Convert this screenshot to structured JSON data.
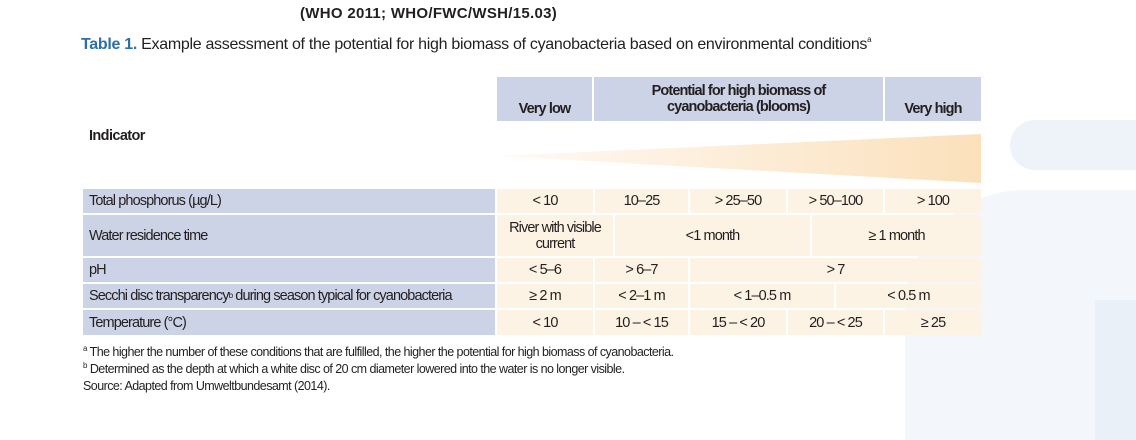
{
  "citation": "(WHO 2011; WHO/FWC/WSH/15.03)",
  "caption": {
    "label": "Table 1.",
    "text": " Example assessment of the potential for high biomass of cyanobacteria based on environmental conditions",
    "sup": "a"
  },
  "header": {
    "indicator": "Indicator",
    "very_low": "Very low",
    "potential": "Potential for high biomass of cyanobacteria (blooms)",
    "very_high": "Very high"
  },
  "rows": [
    {
      "label": "Total phosphorus (µg/L)",
      "values": [
        "< 10",
        "10–25",
        "> 25–50",
        "> 50–100",
        "> 100"
      ]
    },
    {
      "label": "Water residence time",
      "values": [
        "River with visible current",
        "<1 month",
        "≥ 1 month"
      ]
    },
    {
      "label": "pH",
      "values": [
        "< 5–6",
        "> 6–7",
        "> 7"
      ]
    },
    {
      "label": "Secchi disc transparency",
      "label_sup": "b",
      "label_rest": " during season typical for cyanobacteria",
      "values": [
        "≥ 2 m",
        "< 2–1 m",
        "< 1–0.5 m",
        "< 0.5 m"
      ]
    },
    {
      "label": "Temperature (°C)",
      "values": [
        "< 10",
        "10 – < 15",
        "15 – < 20",
        "20 – < 25",
        "≥ 25"
      ]
    }
  ],
  "footnotes": {
    "a_mark": "a",
    "a": " The higher the number of these conditions that are fulfilled, the higher the potential for high biomass of cyanobacteria.",
    "b_mark": "b",
    "b": " Determined as the depth at which a white disc of 20 cm diameter lowered into the water is no longer visible.",
    "source": "Source: Adapted from Umweltbundesamt (2014)."
  },
  "colors": {
    "caption_label": "#2f6fa5",
    "header_bg": "#ccd3e6",
    "value_bg": "#fdf3e4",
    "wedge": "#fbe3c2"
  }
}
